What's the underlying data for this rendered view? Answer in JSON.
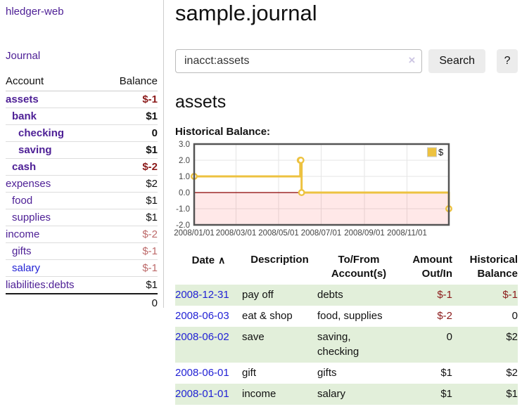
{
  "colors": {
    "link_purple": "#4e2096",
    "link_blue": "#2222d5",
    "negative_strong": "#8b1a1a",
    "negative_soft": "#bd6a6a",
    "row_shade_green": "#e2efda",
    "series_gold": "#edc240",
    "chart_border": "#545454",
    "chart_grid": "#e5e5e5",
    "zero_line": "#8b0000",
    "negative_region": "#ff0000"
  },
  "sidebar": {
    "app_title": "hledger-web",
    "journal_link": "Journal",
    "accounts_header": {
      "account": "Account",
      "balance": "Balance"
    },
    "accounts": [
      {
        "name": "assets",
        "balance": "$-1",
        "depth": 1,
        "bold": true,
        "link_color": "purple",
        "balance_class": "neg-strong"
      },
      {
        "name": "bank",
        "balance": "$1",
        "depth": 2,
        "bold": true,
        "link_color": "purple",
        "balance_class": "pos-strong"
      },
      {
        "name": "checking",
        "balance": "0",
        "depth": 3,
        "bold": true,
        "link_color": "purple",
        "balance_class": "pos-strong"
      },
      {
        "name": "saving",
        "balance": "$1",
        "depth": 3,
        "bold": true,
        "link_color": "purple",
        "balance_class": "pos-strong"
      },
      {
        "name": "cash",
        "balance": "$-2",
        "depth": 2,
        "bold": true,
        "link_color": "purple",
        "balance_class": "neg-strong"
      },
      {
        "name": "expenses",
        "balance": "$2",
        "depth": 1,
        "bold": false,
        "link_color": "purple",
        "balance_class": "plain"
      },
      {
        "name": "food",
        "balance": "$1",
        "depth": 2,
        "bold": false,
        "link_color": "purple",
        "balance_class": "plain"
      },
      {
        "name": "supplies",
        "balance": "$1",
        "depth": 2,
        "bold": false,
        "link_color": "purple",
        "balance_class": "plain"
      },
      {
        "name": "income",
        "balance": "$-2",
        "depth": 1,
        "bold": false,
        "link_color": "purple",
        "balance_class": "neg-soft"
      },
      {
        "name": "gifts",
        "balance": "$-1",
        "depth": 2,
        "bold": false,
        "link_color": "purple",
        "balance_class": "neg-soft"
      },
      {
        "name": "salary",
        "balance": "$-1",
        "depth": 2,
        "bold": false,
        "link_color": "blue",
        "balance_class": "neg-soft"
      },
      {
        "name": "liabilities:debts",
        "balance": "$1",
        "depth": 1,
        "bold": false,
        "link_color": "purple",
        "balance_class": "plain",
        "rule_below": true
      }
    ],
    "total": "0"
  },
  "main": {
    "title": "sample.journal",
    "search": {
      "value": "inacct:assets",
      "button_label": "Search",
      "help_label": "?",
      "clear_icon": "×"
    },
    "account_heading": "assets",
    "chart_label": "Historical Balance:"
  },
  "chart_data": {
    "type": "line",
    "title": "Historical Balance",
    "step": true,
    "legend_position": "top-right",
    "grid": true,
    "x_range": [
      "2008-01-01",
      "2008-12-31"
    ],
    "ylim": [
      -2,
      3
    ],
    "y_ticks": [
      3.0,
      2.0,
      1.0,
      0.0,
      -1.0,
      -2.0
    ],
    "x_ticks": [
      "2008/01/01",
      "2008/03/01",
      "2008/05/01",
      "2008/07/01",
      "2008/09/01",
      "2008/11/01"
    ],
    "series": [
      {
        "name": "$",
        "color": "#edc240",
        "points": [
          [
            "2008-01-01",
            1
          ],
          [
            "2008-06-01",
            2
          ],
          [
            "2008-06-02",
            2
          ],
          [
            "2008-06-03",
            0
          ],
          [
            "2008-12-31",
            -1
          ]
        ]
      }
    ]
  },
  "transactions": {
    "headers": [
      {
        "label": "Date",
        "align": "left",
        "sort_icon": "∧"
      },
      {
        "label": "Description",
        "align": "left"
      },
      {
        "label": "To/From\nAccount(s)",
        "align": "left"
      },
      {
        "label": "Amount\nOut/In",
        "align": "right"
      },
      {
        "label": "Historical\nBalance",
        "align": "right"
      }
    ],
    "rows": [
      {
        "date": "2008-12-31",
        "description": "pay off",
        "accounts": "debts",
        "amount": "$-1",
        "amount_negative": true,
        "balance": "$-1",
        "balance_negative": true,
        "shaded": true
      },
      {
        "date": "2008-06-03",
        "description": "eat & shop",
        "accounts": "food, supplies",
        "amount": "$-2",
        "amount_negative": true,
        "balance": "0",
        "balance_negative": false,
        "shaded": false
      },
      {
        "date": "2008-06-02",
        "description": "save",
        "accounts": "saving,\nchecking",
        "amount": "0",
        "amount_negative": false,
        "balance": "$2",
        "balance_negative": false,
        "shaded": true
      },
      {
        "date": "2008-06-01",
        "description": "gift",
        "accounts": "gifts",
        "amount": "$1",
        "amount_negative": false,
        "balance": "$2",
        "balance_negative": false,
        "shaded": false
      },
      {
        "date": "2008-01-01",
        "description": "income",
        "accounts": "salary",
        "amount": "$1",
        "amount_negative": false,
        "balance": "$1",
        "balance_negative": false,
        "shaded": true
      }
    ]
  }
}
